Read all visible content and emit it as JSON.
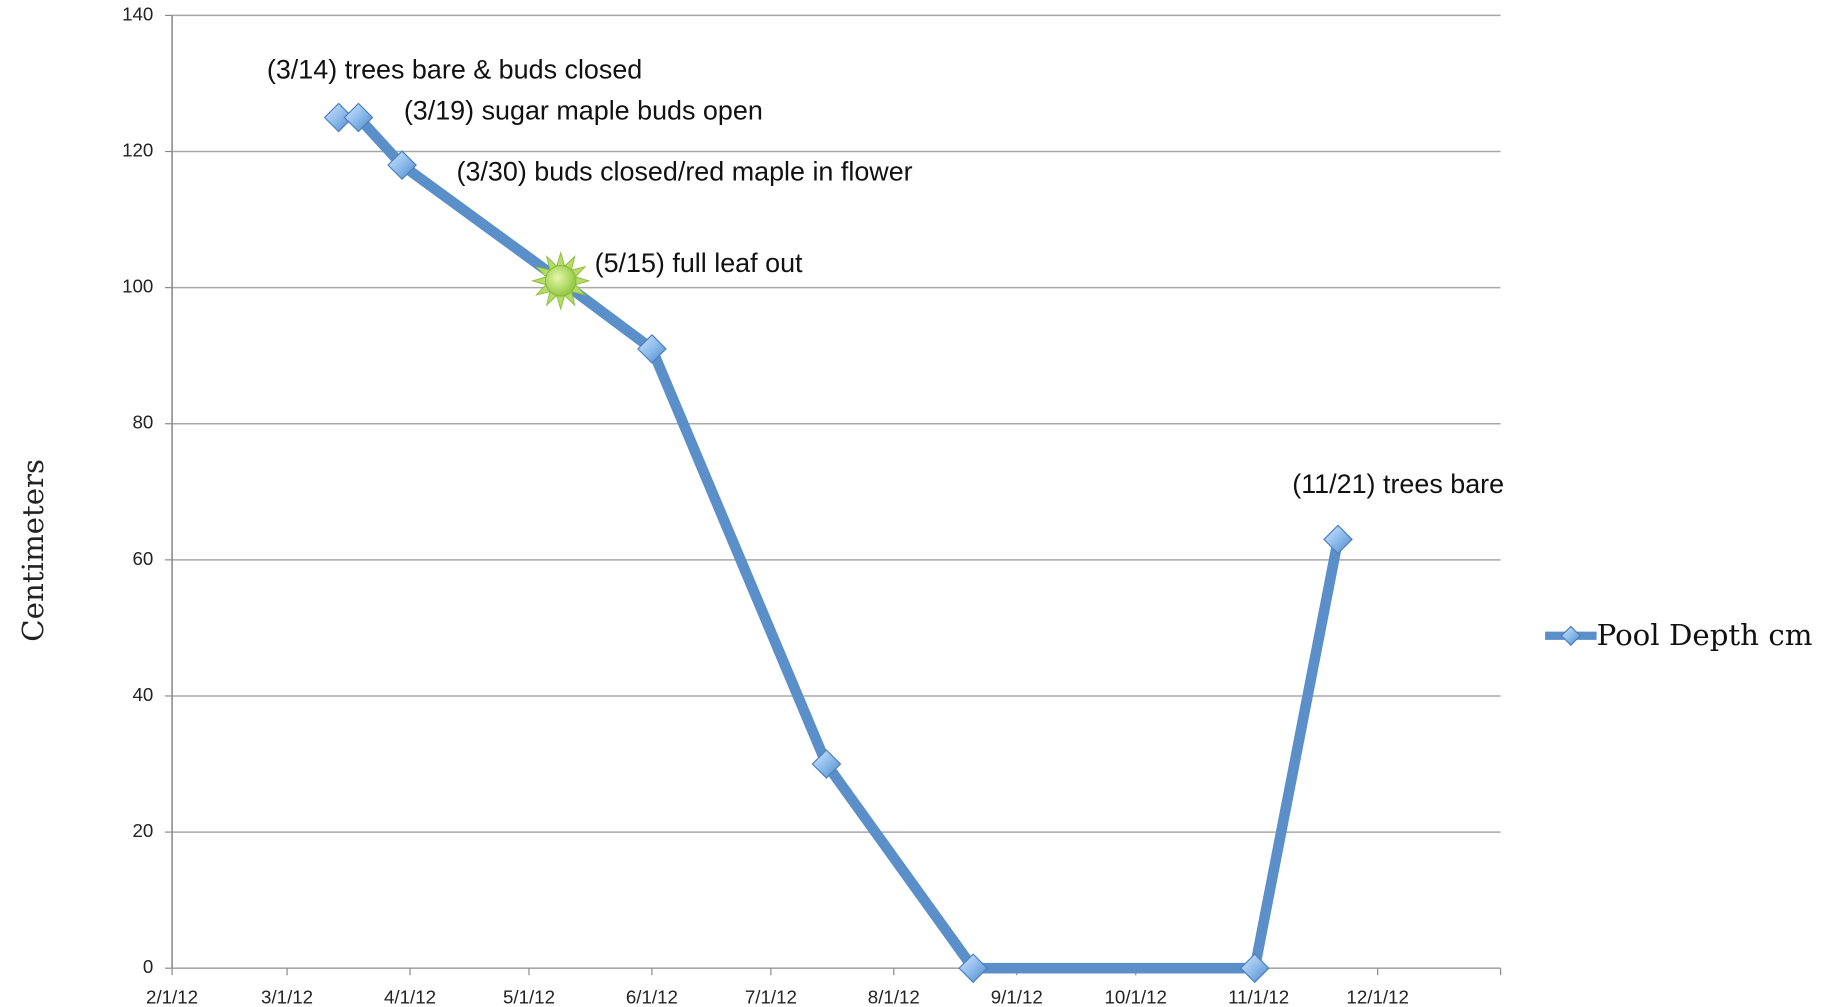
{
  "chart_data": {
    "type": "line",
    "y_label": "Centimeters",
    "x": [
      "2012-03-14",
      "2012-03-19",
      "2012-03-30",
      "2012-05-09",
      "2012-06-01",
      "2012-07-15",
      "2012-08-21",
      "2012-10-31",
      "2012-11-21"
    ],
    "series": [
      {
        "name": "Pool Depth cm",
        "color": "#5b8fc9",
        "values": [
          125,
          125,
          118,
          101,
          91,
          30,
          0,
          0,
          63
        ],
        "markers": [
          "diamond",
          "diamond",
          "diamond",
          "sun",
          "diamond",
          "diamond",
          "diamond",
          "diamond",
          "diamond"
        ]
      }
    ],
    "annotations": [
      "(3/14) trees bare & buds closed",
      "(3/19) sugar maple buds open",
      "(3/30) buds closed/red maple in flower",
      "(5/15) full leaf out",
      "(11/21) trees bare"
    ],
    "xlim": [
      "2012-02-01",
      "2013-01-01"
    ],
    "xticks": [
      {
        "value": "2012-02-01",
        "label": "2/1/12"
      },
      {
        "value": "2012-03-01",
        "label": "3/1/12"
      },
      {
        "value": "2012-04-01",
        "label": "4/1/12"
      },
      {
        "value": "2012-05-01",
        "label": "5/1/12"
      },
      {
        "value": "2012-06-01",
        "label": "6/1/12"
      },
      {
        "value": "2012-07-01",
        "label": "7/1/12"
      },
      {
        "value": "2012-08-01",
        "label": "8/1/12"
      },
      {
        "value": "2012-09-01",
        "label": "9/1/12"
      },
      {
        "value": "2012-10-01",
        "label": "10/1/12"
      },
      {
        "value": "2012-11-01",
        "label": "11/1/12"
      },
      {
        "value": "2012-12-01",
        "label": "12/1/12"
      }
    ],
    "ylim": [
      0,
      140
    ],
    "yticks": [
      0,
      20,
      40,
      60,
      80,
      100,
      120,
      140
    ],
    "grid": true,
    "legend": "right"
  }
}
